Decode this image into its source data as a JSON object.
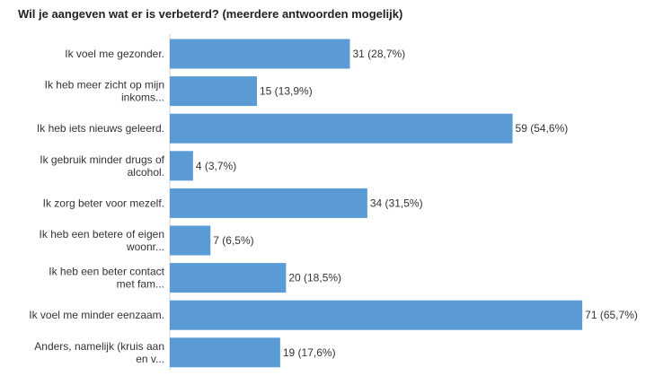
{
  "chart_data": {
    "type": "bar",
    "orientation": "horizontal",
    "title": "Wil je aangeven wat er is verbeterd? (meerdere antwoorden mogelijk)",
    "categories": [
      [
        "Ik voel me gezonder."
      ],
      [
        "Ik heb meer zicht op mijn",
        "inkoms..."
      ],
      [
        "Ik heb iets nieuws geleerd."
      ],
      [
        "Ik gebruik minder drugs of",
        "alcohol."
      ],
      [
        "Ik zorg beter voor mezelf."
      ],
      [
        "Ik heb een betere of eigen",
        "woonr..."
      ],
      [
        "Ik heb een beter contact",
        "met fam..."
      ],
      [
        "Ik voel me minder eenzaam."
      ],
      [
        "Anders, namelijk (kruis aan",
        "en v..."
      ]
    ],
    "values": [
      31,
      15,
      59,
      4,
      34,
      7,
      20,
      71,
      19
    ],
    "data_labels": [
      "31 (28,7%)",
      "15 (13,9%)",
      "59 (54,6%)",
      "4 (3,7%)",
      "34 (31,5%)",
      "7 (6,5%)",
      "20 (18,5%)",
      "71 (65,7%)",
      "19 (17,6%)"
    ],
    "xlim": [
      0,
      83.5
    ],
    "grid": false,
    "legend": "none",
    "bar_color": "#5b9bd5"
  }
}
